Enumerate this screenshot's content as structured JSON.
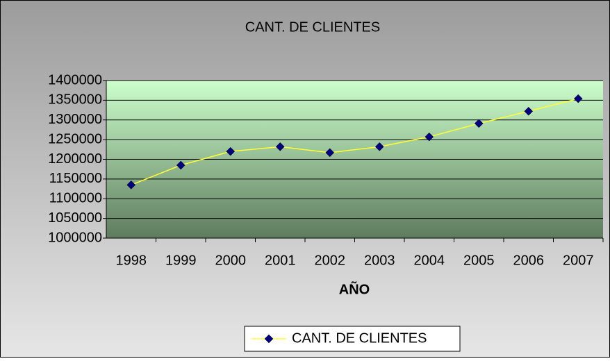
{
  "chart_data": {
    "type": "line",
    "title": "CANT. DE CLIENTES",
    "x_label": "AÑO",
    "categories": [
      "1998",
      "1999",
      "2000",
      "2001",
      "2002",
      "2003",
      "2004",
      "2005",
      "2006",
      "2007"
    ],
    "series": [
      {
        "name": "CANT. DE CLIENTES",
        "color": "#ffff33",
        "marker_color": "#000080",
        "values": [
          1135000,
          1185000,
          1220000,
          1232000,
          1217000,
          1232000,
          1257000,
          1291000,
          1322000,
          1354000
        ]
      }
    ],
    "ylim": [
      1000000,
      1400000
    ],
    "yticks": [
      1000000,
      1050000,
      1100000,
      1150000,
      1200000,
      1250000,
      1300000,
      1350000,
      1400000
    ],
    "grid": true,
    "legend": "bottom"
  }
}
